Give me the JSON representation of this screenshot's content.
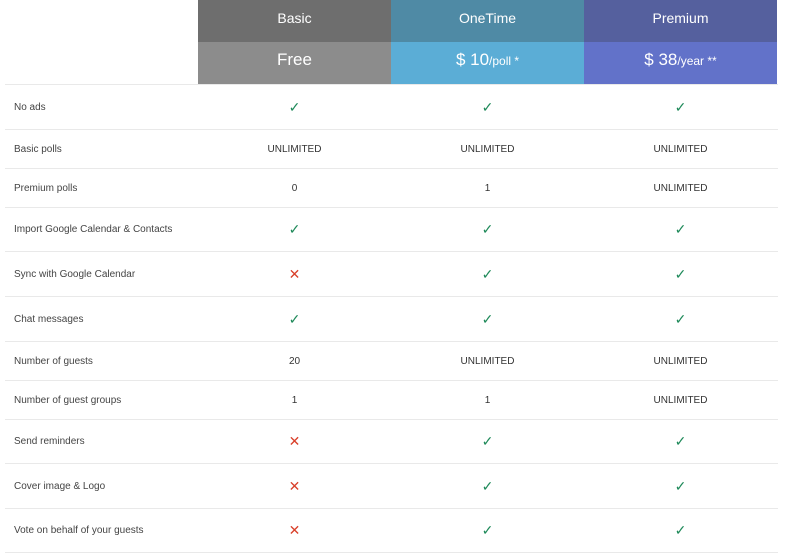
{
  "plans": [
    {
      "name": "Basic",
      "price": "Free",
      "unit": "",
      "note": "",
      "header_color": "#6e6e6e",
      "price_color": "#8c8c8c"
    },
    {
      "name": "OneTime",
      "price": "$ 10",
      "unit": "/poll",
      "note": " *",
      "header_color": "#4f8aa5",
      "price_color": "#5badd6"
    },
    {
      "name": "Premium",
      "price": "$ 38",
      "unit": "/year",
      "note": " **",
      "header_color": "#55609e",
      "price_color": "#6272c9"
    }
  ],
  "features": [
    {
      "label": "No ads",
      "values": [
        "check",
        "check",
        "check"
      ]
    },
    {
      "label": "Basic polls",
      "values": [
        "UNLIMITED",
        "UNLIMITED",
        "UNLIMITED"
      ]
    },
    {
      "label": "Premium polls",
      "values": [
        "0",
        "1",
        "UNLIMITED"
      ]
    },
    {
      "label": "Import Google Calendar & Contacts",
      "values": [
        "check",
        "check",
        "check"
      ]
    },
    {
      "label": "Sync with Google Calendar",
      "values": [
        "cross",
        "check",
        "check"
      ]
    },
    {
      "label": "Chat messages",
      "values": [
        "check",
        "check",
        "check"
      ]
    },
    {
      "label": "Number of guests",
      "values": [
        "20",
        "UNLIMITED",
        "UNLIMITED"
      ]
    },
    {
      "label": "Number of guest groups",
      "values": [
        "1",
        "1",
        "UNLIMITED"
      ]
    },
    {
      "label": "Send reminders",
      "values": [
        "cross",
        "check",
        "check"
      ]
    },
    {
      "label": "Cover image & Logo",
      "values": [
        "cross",
        "check",
        "check"
      ]
    },
    {
      "label": "Vote on behalf of your guests",
      "values": [
        "cross",
        "check",
        "check"
      ]
    }
  ],
  "icons": {
    "check": "✓",
    "cross": "✕"
  },
  "colors": {
    "check": "#1f8a5a",
    "cross": "#d9412b"
  }
}
